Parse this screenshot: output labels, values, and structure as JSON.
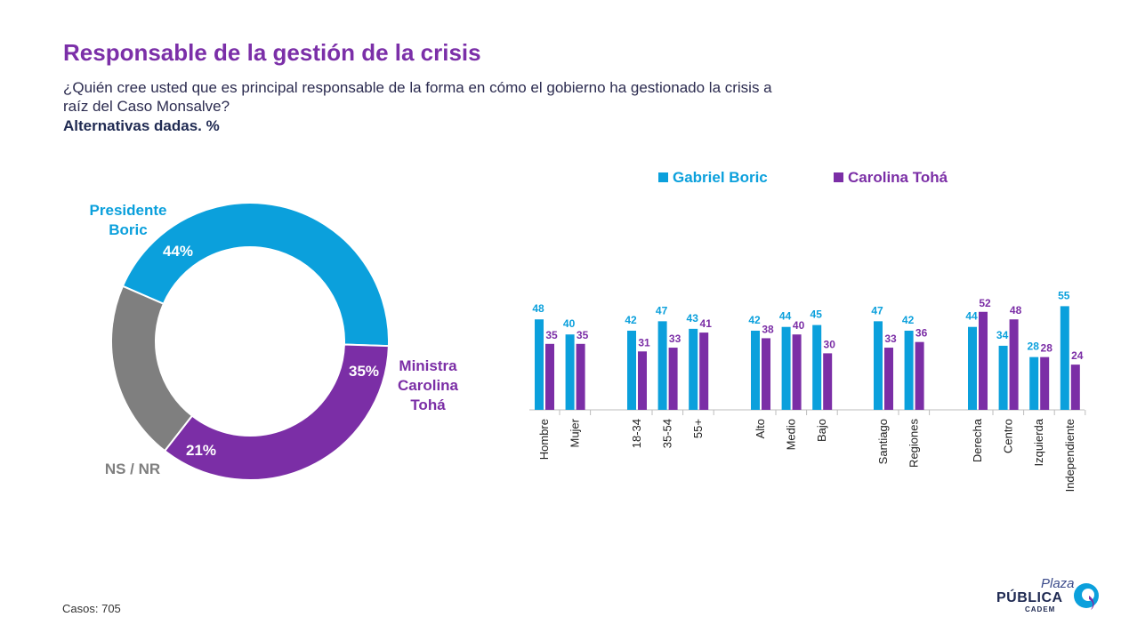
{
  "header": {
    "title": "Responsable de la gestión de la crisis",
    "subtitle": "¿Quién cree usted que es principal responsable de la forma en cómo el gobierno ha gestionado la crisis a raíz del Caso Monsalve?",
    "subtitle2": "Alternativas dadas. %"
  },
  "footer": {
    "casos_label": "Casos",
    "casos_value": ": 705"
  },
  "logo": {
    "line1": "Plaza",
    "line2": "PÚBLICA",
    "line3": "CADEM"
  },
  "colors": {
    "boric": "#0ba0dc",
    "toha": "#7b2ea6",
    "nsnr": "#7f7f7f",
    "title": "#7b2fa8"
  },
  "chart_data": [
    {
      "type": "pie",
      "donut": true,
      "labels": [
        "Presidente Boric",
        "Ministra Carolina Tohá",
        "NS / NR"
      ],
      "values": [
        44,
        35,
        21
      ],
      "value_labels": [
        "44%",
        "35%",
        "21%"
      ],
      "colors": [
        "#0ba0dc",
        "#7b2ea6",
        "#7f7f7f"
      ]
    },
    {
      "type": "bar",
      "categories": [
        "Hombre",
        "Mujer",
        "18-34",
        "35-54",
        "55+",
        "Alto",
        "Medio",
        "Bajo",
        "Santiago",
        "Regiones",
        "Derecha",
        "Centro",
        "Izquierda",
        "Independiente"
      ],
      "groups": [
        2,
        3,
        3,
        2,
        4
      ],
      "series": [
        {
          "name": "Gabriel Boric",
          "color": "#0ba0dc",
          "values": [
            48,
            40,
            42,
            47,
            43,
            42,
            44,
            45,
            47,
            42,
            44,
            34,
            28,
            55
          ]
        },
        {
          "name": "Carolina Tohá",
          "color": "#7b2ea6",
          "values": [
            35,
            35,
            31,
            33,
            41,
            38,
            40,
            30,
            33,
            36,
            52,
            48,
            28,
            24
          ]
        }
      ],
      "legend": "top"
    }
  ]
}
